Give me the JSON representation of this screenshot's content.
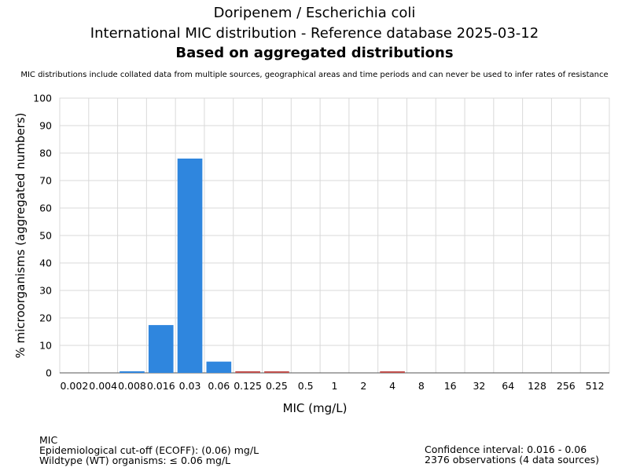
{
  "header": {
    "title_line1": "Doripenem / Escherichia coli",
    "title_line2": "International MIC distribution - Reference database 2025-03-12",
    "title_line3": "Based on aggregated distributions",
    "note": "MIC distributions include collated data from multiple sources, geographical areas and time periods and can never be used to infer rates of resistance"
  },
  "footer": {
    "left": [
      "MIC",
      "Epidemiological cut-off (ECOFF): (0.06) mg/L",
      "Wildtype (WT) organisms: ≤ 0.06 mg/L"
    ],
    "right": [
      "Confidence interval: 0.016 - 0.06",
      "2376 observations (4 data sources)"
    ]
  },
  "colors": {
    "wildtype": "#2f86de",
    "non_wildtype": "#c0504d",
    "grid": "#d9d9d9"
  },
  "chart_data": {
    "type": "bar",
    "xlabel": "MIC (mg/L)",
    "ylabel": "% microorganisms (aggregated numbers)",
    "ylim": [
      0,
      100
    ],
    "yticks": [
      0,
      10,
      20,
      30,
      40,
      50,
      60,
      70,
      80,
      90,
      100
    ],
    "grid": true,
    "categories": [
      "0.002",
      "0.004",
      "0.008",
      "0.016",
      "0.03",
      "0.06",
      "0.125",
      "0.25",
      "0.5",
      "1",
      "2",
      "4",
      "8",
      "16",
      "32",
      "64",
      "128",
      "256",
      "512"
    ],
    "values": [
      0,
      0,
      0.3,
      17.4,
      78.0,
      4.1,
      0.6,
      0.3,
      0,
      0,
      0,
      0.3,
      0,
      0,
      0,
      0,
      0,
      0,
      0
    ],
    "ecoff": "0.06"
  }
}
